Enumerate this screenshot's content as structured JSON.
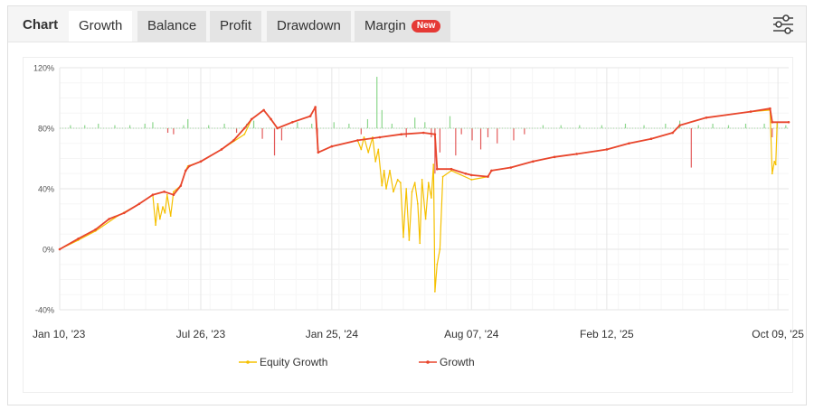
{
  "tabs": {
    "title": "Chart",
    "items": [
      {
        "label": "Growth",
        "active": true
      },
      {
        "label": "Balance",
        "active": false
      },
      {
        "label": "Profit",
        "active": false
      },
      {
        "label": "Drawdown",
        "active": false
      },
      {
        "label": "Margin",
        "active": false,
        "badge": "New"
      }
    ]
  },
  "settings_icon": "sliders-icon",
  "colors": {
    "growth": "#e8452c",
    "equity": "#f5c000",
    "positive_bar": "#8cd68c",
    "negative_bar": "#e35b5b",
    "grid": "#eeeeee"
  },
  "chart_data": {
    "type": "line",
    "x_type": "date",
    "xlim": [
      "2023-01-10",
      "2025-10-24"
    ],
    "ylim": [
      -40,
      120
    ],
    "yticks": [
      {
        "value": 120,
        "label": "120%"
      },
      {
        "value": 80,
        "label": "80%"
      },
      {
        "value": 40,
        "label": "40%"
      },
      {
        "value": 0,
        "label": "0%"
      },
      {
        "value": -40,
        "label": "-40%"
      }
    ],
    "xticks": [
      {
        "date": "2023-01-10",
        "label": "Jan 10, '23"
      },
      {
        "date": "2023-07-26",
        "label": "Jul 26, '23"
      },
      {
        "date": "2024-01-25",
        "label": "Jan 25, '24"
      },
      {
        "date": "2024-08-07",
        "label": "Aug 07, '24"
      },
      {
        "date": "2025-02-12",
        "label": "Feb 12, '25"
      },
      {
        "date": "2025-10-09",
        "label": "Oct 09, '25"
      }
    ],
    "grid": true,
    "legend_position": "bottom",
    "bar_baseline": 80,
    "series": [
      {
        "name": "Equity Growth",
        "color": "#f5c000",
        "points": [
          [
            "2023-01-10",
            0
          ],
          [
            "2023-02-05",
            6
          ],
          [
            "2023-03-01",
            12
          ],
          [
            "2023-04-01",
            22
          ],
          [
            "2023-05-01",
            30
          ],
          [
            "2023-05-20",
            36
          ],
          [
            "2023-05-24",
            16
          ],
          [
            "2023-05-27",
            30
          ],
          [
            "2023-05-30",
            20
          ],
          [
            "2023-06-03",
            28
          ],
          [
            "2023-06-06",
            24
          ],
          [
            "2023-06-09",
            36
          ],
          [
            "2023-06-14",
            22
          ],
          [
            "2023-06-18",
            38
          ],
          [
            "2023-06-28",
            42
          ],
          [
            "2023-07-05",
            52
          ],
          [
            "2023-07-08",
            55
          ],
          [
            "2023-07-26",
            58
          ],
          [
            "2023-08-24",
            66
          ],
          [
            "2023-09-25",
            76
          ],
          [
            "2023-10-05",
            86
          ],
          [
            "2023-10-22",
            92
          ],
          [
            "2023-11-10",
            80
          ],
          [
            "2023-12-01",
            84
          ],
          [
            "2023-12-26",
            88
          ],
          [
            "2024-01-02",
            94
          ],
          [
            "2024-01-06",
            64
          ],
          [
            "2024-01-25",
            68
          ],
          [
            "2024-03-01",
            72
          ],
          [
            "2024-03-06",
            66
          ],
          [
            "2024-03-10",
            74
          ],
          [
            "2024-03-16",
            64
          ],
          [
            "2024-03-22",
            74
          ],
          [
            "2024-03-26",
            58
          ],
          [
            "2024-03-30",
            66
          ],
          [
            "2024-04-04",
            42
          ],
          [
            "2024-04-07",
            52
          ],
          [
            "2024-04-10",
            40
          ],
          [
            "2024-04-15",
            52
          ],
          [
            "2024-04-20",
            38
          ],
          [
            "2024-04-26",
            46
          ],
          [
            "2024-04-30",
            44
          ],
          [
            "2024-05-04",
            8
          ],
          [
            "2024-05-08",
            40
          ],
          [
            "2024-05-12",
            6
          ],
          [
            "2024-05-16",
            38
          ],
          [
            "2024-05-20",
            44
          ],
          [
            "2024-05-24",
            30
          ],
          [
            "2024-05-27",
            4
          ],
          [
            "2024-05-30",
            46
          ],
          [
            "2024-06-04",
            20
          ],
          [
            "2024-06-08",
            44
          ],
          [
            "2024-06-12",
            34
          ],
          [
            "2024-06-15",
            56
          ],
          [
            "2024-06-17",
            -28
          ],
          [
            "2024-06-20",
            -10
          ],
          [
            "2024-06-24",
            0
          ],
          [
            "2024-06-28",
            48
          ],
          [
            "2024-07-10",
            52
          ],
          [
            "2024-08-07",
            46
          ],
          [
            "2024-08-30",
            48
          ],
          [
            "2024-09-04",
            52
          ],
          [
            "2024-10-01",
            54
          ],
          [
            "2024-11-01",
            58
          ],
          [
            "2024-12-01",
            61
          ],
          [
            "2025-01-01",
            63
          ],
          [
            "2025-02-12",
            66
          ],
          [
            "2025-03-15",
            70
          ],
          [
            "2025-04-15",
            73
          ],
          [
            "2025-05-15",
            77
          ],
          [
            "2025-05-25",
            82
          ],
          [
            "2025-07-01",
            87
          ],
          [
            "2025-09-01",
            91
          ],
          [
            "2025-09-28",
            92
          ],
          [
            "2025-10-01",
            50
          ],
          [
            "2025-10-04",
            58
          ],
          [
            "2025-10-06",
            56
          ],
          [
            "2025-10-08",
            84
          ],
          [
            "2025-10-24",
            84
          ]
        ]
      },
      {
        "name": "Growth",
        "color": "#e8452c",
        "points": [
          [
            "2023-01-10",
            0
          ],
          [
            "2023-02-05",
            7
          ],
          [
            "2023-03-01",
            13
          ],
          [
            "2023-03-20",
            20
          ],
          [
            "2023-04-10",
            24
          ],
          [
            "2023-05-01",
            30
          ],
          [
            "2023-05-20",
            36
          ],
          [
            "2023-06-05",
            38
          ],
          [
            "2023-06-18",
            36
          ],
          [
            "2023-06-28",
            42
          ],
          [
            "2023-07-05",
            52
          ],
          [
            "2023-07-10",
            55
          ],
          [
            "2023-07-26",
            58
          ],
          [
            "2023-08-24",
            66
          ],
          [
            "2023-09-10",
            72
          ],
          [
            "2023-09-25",
            80
          ],
          [
            "2023-10-05",
            86
          ],
          [
            "2023-10-22",
            92
          ],
          [
            "2023-11-01",
            86
          ],
          [
            "2023-11-10",
            80
          ],
          [
            "2023-12-01",
            84
          ],
          [
            "2023-12-26",
            88
          ],
          [
            "2024-01-02",
            94
          ],
          [
            "2024-01-06",
            64
          ],
          [
            "2024-01-25",
            68
          ],
          [
            "2024-03-01",
            72
          ],
          [
            "2024-04-01",
            74
          ],
          [
            "2024-05-01",
            76
          ],
          [
            "2024-06-01",
            77
          ],
          [
            "2024-06-17",
            76
          ],
          [
            "2024-06-20",
            53
          ],
          [
            "2024-07-10",
            53
          ],
          [
            "2024-07-30",
            50
          ],
          [
            "2024-08-07",
            49
          ],
          [
            "2024-08-30",
            48
          ],
          [
            "2024-09-04",
            52
          ],
          [
            "2024-10-01",
            54
          ],
          [
            "2024-11-01",
            58
          ],
          [
            "2024-12-01",
            61
          ],
          [
            "2025-01-01",
            63
          ],
          [
            "2025-02-12",
            66
          ],
          [
            "2025-03-15",
            70
          ],
          [
            "2025-04-15",
            73
          ],
          [
            "2025-05-15",
            77
          ],
          [
            "2025-05-25",
            82
          ],
          [
            "2025-07-01",
            87
          ],
          [
            "2025-09-01",
            91
          ],
          [
            "2025-09-28",
            93
          ],
          [
            "2025-10-01",
            84
          ],
          [
            "2025-10-24",
            84
          ]
        ]
      }
    ],
    "bars": [
      [
        "2023-01-25",
        2
      ],
      [
        "2023-02-14",
        2
      ],
      [
        "2023-03-05",
        3
      ],
      [
        "2023-03-28",
        2
      ],
      [
        "2023-04-18",
        2
      ],
      [
        "2023-05-09",
        3
      ],
      [
        "2023-05-20",
        4
      ],
      [
        "2023-06-10",
        -3
      ],
      [
        "2023-06-18",
        -4
      ],
      [
        "2023-07-02",
        2
      ],
      [
        "2023-07-08",
        6
      ],
      [
        "2023-08-06",
        2
      ],
      [
        "2023-08-28",
        3
      ],
      [
        "2023-09-14",
        -3
      ],
      [
        "2023-09-28",
        3
      ],
      [
        "2023-10-08",
        5
      ],
      [
        "2023-10-20",
        -7
      ],
      [
        "2023-11-06",
        -18
      ],
      [
        "2023-11-16",
        -8
      ],
      [
        "2023-12-08",
        4
      ],
      [
        "2023-12-28",
        3
      ],
      [
        "2024-01-05",
        -14
      ],
      [
        "2024-01-28",
        4
      ],
      [
        "2024-02-18",
        3
      ],
      [
        "2024-03-06",
        -4
      ],
      [
        "2024-03-15",
        6
      ],
      [
        "2024-03-28",
        34
      ],
      [
        "2024-04-04",
        12
      ],
      [
        "2024-04-18",
        3
      ],
      [
        "2024-05-08",
        -6
      ],
      [
        "2024-05-20",
        7
      ],
      [
        "2024-06-03",
        4
      ],
      [
        "2024-06-12",
        -6
      ],
      [
        "2024-06-17",
        -30
      ],
      [
        "2024-06-24",
        -16
      ],
      [
        "2024-07-08",
        8
      ],
      [
        "2024-07-16",
        -18
      ],
      [
        "2024-07-24",
        -4
      ],
      [
        "2024-08-08",
        -8
      ],
      [
        "2024-08-20",
        -14
      ],
      [
        "2024-08-30",
        -6
      ],
      [
        "2024-09-12",
        -10
      ],
      [
        "2024-10-05",
        -8
      ],
      [
        "2024-10-20",
        -4
      ],
      [
        "2024-11-15",
        2
      ],
      [
        "2024-12-10",
        2
      ],
      [
        "2025-01-05",
        2
      ],
      [
        "2025-02-05",
        2
      ],
      [
        "2025-03-10",
        3
      ],
      [
        "2025-04-05",
        2
      ],
      [
        "2025-05-05",
        3
      ],
      [
        "2025-05-25",
        5
      ],
      [
        "2025-06-10",
        -26
      ],
      [
        "2025-06-20",
        2
      ],
      [
        "2025-07-10",
        3
      ],
      [
        "2025-08-01",
        2
      ],
      [
        "2025-08-25",
        3
      ],
      [
        "2025-09-20",
        3
      ],
      [
        "2025-10-01",
        -6
      ],
      [
        "2025-10-08",
        4
      ],
      [
        "2025-10-20",
        2
      ]
    ]
  }
}
